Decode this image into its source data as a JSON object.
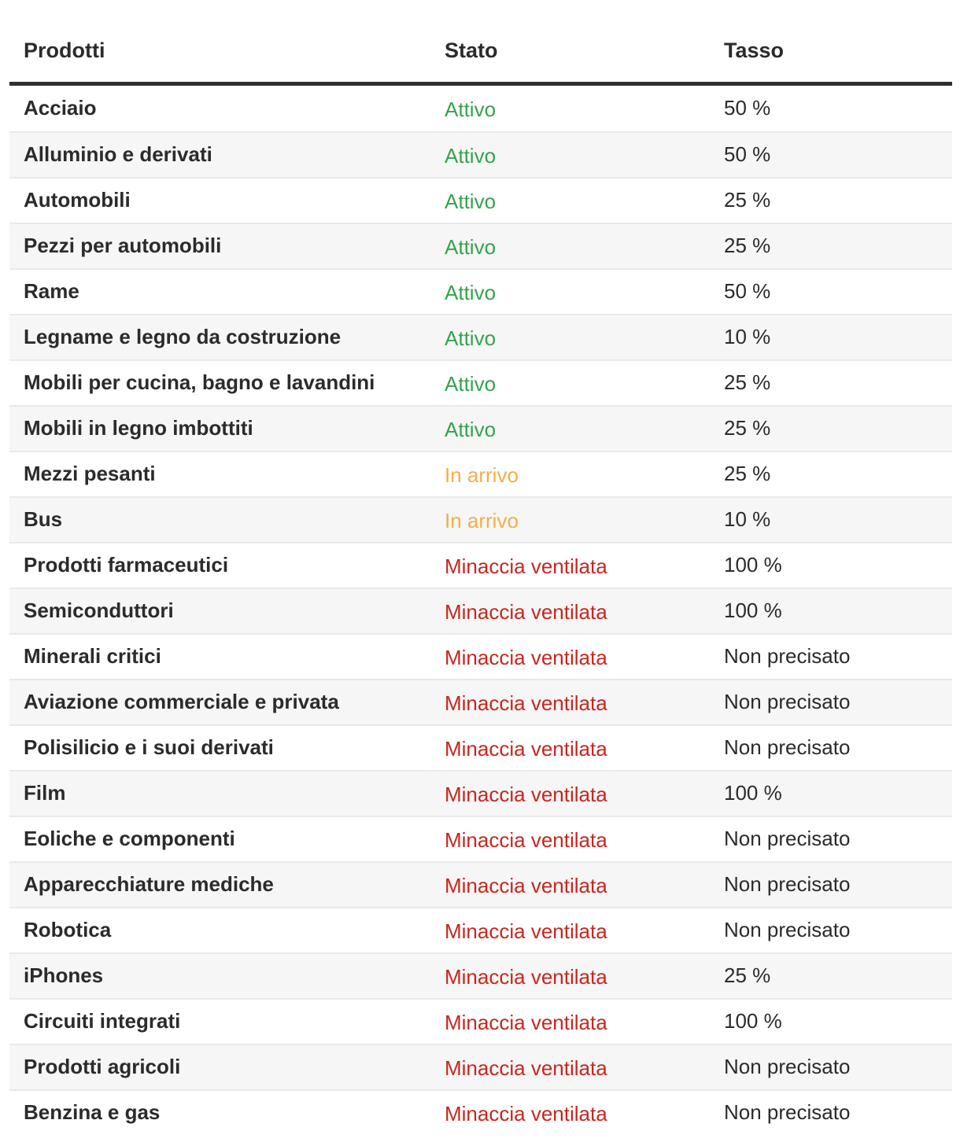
{
  "colors": {
    "text": "#2b2b2b",
    "row_alt_bg": "#f6f6f6",
    "divider": "#e9e9e9",
    "header_rule": "#2e2e2e"
  },
  "status_colors": {
    "active": "#35a34c",
    "incoming": "#f0b049",
    "threat": "#c5271f"
  },
  "table": {
    "columns": [
      {
        "key": "product",
        "label": "Prodotti"
      },
      {
        "key": "status",
        "label": "Stato"
      },
      {
        "key": "rate",
        "label": "Tasso"
      }
    ],
    "rows": [
      {
        "product": "Acciaio",
        "status": "Attivo",
        "status_key": "active",
        "rate": "50 %"
      },
      {
        "product": "Alluminio e derivati",
        "status": "Attivo",
        "status_key": "active",
        "rate": "50 %"
      },
      {
        "product": "Automobili",
        "status": "Attivo",
        "status_key": "active",
        "rate": "25 %"
      },
      {
        "product": "Pezzi per automobili",
        "status": "Attivo",
        "status_key": "active",
        "rate": "25 %"
      },
      {
        "product": "Rame",
        "status": "Attivo",
        "status_key": "active",
        "rate": "50 %"
      },
      {
        "product": "Legname e legno da costruzione",
        "status": "Attivo",
        "status_key": "active",
        "rate": "10 %"
      },
      {
        "product": "Mobili per cucina, bagno e lavandini",
        "status": "Attivo",
        "status_key": "active",
        "rate": "25 %"
      },
      {
        "product": "Mobili in legno imbottiti",
        "status": "Attivo",
        "status_key": "active",
        "rate": "25 %"
      },
      {
        "product": "Mezzi pesanti",
        "status": "In arrivo",
        "status_key": "incoming",
        "rate": "25 %"
      },
      {
        "product": "Bus",
        "status": "In arrivo",
        "status_key": "incoming",
        "rate": "10 %"
      },
      {
        "product": "Prodotti farmaceutici",
        "status": "Minaccia ventilata",
        "status_key": "threat",
        "rate": "100 %"
      },
      {
        "product": "Semiconduttori",
        "status": "Minaccia ventilata",
        "status_key": "threat",
        "rate": "100 %"
      },
      {
        "product": "Minerali critici",
        "status": "Minaccia ventilata",
        "status_key": "threat",
        "rate": "Non precisato"
      },
      {
        "product": "Aviazione commerciale e privata",
        "status": "Minaccia ventilata",
        "status_key": "threat",
        "rate": "Non precisato"
      },
      {
        "product": "Polisilicio e i suoi derivati",
        "status": "Minaccia ventilata",
        "status_key": "threat",
        "rate": "Non precisato"
      },
      {
        "product": "Film",
        "status": "Minaccia ventilata",
        "status_key": "threat",
        "rate": "100 %"
      },
      {
        "product": "Eoliche e componenti",
        "status": "Minaccia ventilata",
        "status_key": "threat",
        "rate": "Non precisato"
      },
      {
        "product": "Apparecchiature mediche",
        "status": "Minaccia ventilata",
        "status_key": "threat",
        "rate": "Non precisato"
      },
      {
        "product": "Robotica",
        "status": "Minaccia ventilata",
        "status_key": "threat",
        "rate": "Non precisato"
      },
      {
        "product": "iPhones",
        "status": "Minaccia ventilata",
        "status_key": "threat",
        "rate": "25 %"
      },
      {
        "product": "Circuiti integrati",
        "status": "Minaccia ventilata",
        "status_key": "threat",
        "rate": "100 %"
      },
      {
        "product": "Prodotti agricoli",
        "status": "Minaccia ventilata",
        "status_key": "threat",
        "rate": "Non precisato"
      },
      {
        "product": "Benzina e gas",
        "status": "Minaccia ventilata",
        "status_key": "threat",
        "rate": "Non precisato"
      }
    ]
  }
}
